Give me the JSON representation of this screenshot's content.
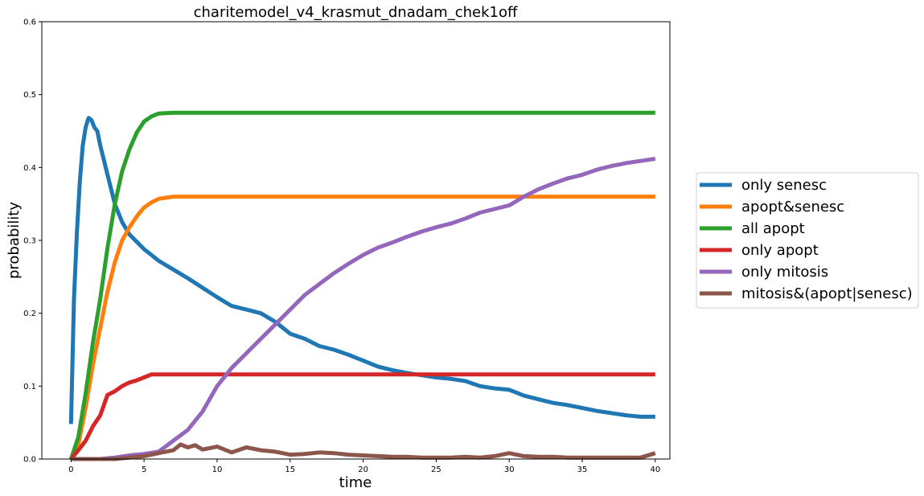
{
  "chart_data": {
    "type": "line",
    "title": "charitemodel_v4_krasmut_dnadam_chek1off",
    "xlabel": "time",
    "ylabel": "probability",
    "xlim": [
      -2,
      41
    ],
    "ylim": [
      0,
      0.6
    ],
    "xticks": [
      0,
      5,
      10,
      15,
      20,
      25,
      30,
      35,
      40
    ],
    "yticks": [
      0.0,
      0.1,
      0.2,
      0.3,
      0.4,
      0.5,
      0.6
    ],
    "xtick_labels": [
      "0",
      "5",
      "10",
      "15",
      "20",
      "25",
      "30",
      "35",
      "40"
    ],
    "ytick_labels": [
      "0.0",
      "0.1",
      "0.2",
      "0.3",
      "0.4",
      "0.5",
      "0.6"
    ],
    "grid": false,
    "legend_position": "outside-right",
    "series": [
      {
        "name": "only senesc",
        "color": "#1f77b4",
        "x": [
          0,
          0.2,
          0.4,
          0.6,
          0.8,
          1.0,
          1.2,
          1.4,
          1.6,
          1.8,
          2.0,
          2.5,
          3.0,
          3.5,
          4.0,
          4.5,
          5.0,
          5.5,
          6.0,
          7.0,
          8.0,
          9.0,
          10.0,
          11.0,
          12.0,
          13.0,
          14.0,
          15.0,
          16.0,
          17.0,
          18.0,
          19.0,
          20.0,
          21.0,
          22.0,
          23.0,
          24.0,
          25.0,
          26.0,
          27.0,
          28.0,
          29.0,
          30.0,
          31.0,
          32.0,
          33.0,
          34.0,
          35.0,
          36.0,
          37.0,
          38.0,
          39.0,
          40.0
        ],
        "y": [
          0.048,
          0.22,
          0.31,
          0.38,
          0.43,
          0.455,
          0.468,
          0.465,
          0.455,
          0.45,
          0.43,
          0.39,
          0.35,
          0.325,
          0.308,
          0.298,
          0.288,
          0.28,
          0.272,
          0.26,
          0.248,
          0.235,
          0.222,
          0.21,
          0.205,
          0.2,
          0.188,
          0.172,
          0.165,
          0.155,
          0.15,
          0.143,
          0.135,
          0.127,
          0.122,
          0.118,
          0.115,
          0.112,
          0.11,
          0.107,
          0.1,
          0.097,
          0.095,
          0.087,
          0.082,
          0.077,
          0.074,
          0.07,
          0.066,
          0.063,
          0.06,
          0.058,
          0.058
        ]
      },
      {
        "name": "apopt&senesc",
        "color": "#ff7f0e",
        "x": [
          0,
          0.5,
          1.0,
          1.5,
          2.0,
          2.5,
          3.0,
          3.5,
          4.0,
          4.5,
          5.0,
          5.5,
          6.0,
          7.0,
          10.0,
          20.0,
          30.0,
          40.0
        ],
        "y": [
          0,
          0.02,
          0.07,
          0.13,
          0.18,
          0.23,
          0.27,
          0.3,
          0.318,
          0.333,
          0.345,
          0.352,
          0.357,
          0.36,
          0.36,
          0.36,
          0.36,
          0.36
        ]
      },
      {
        "name": "all apopt",
        "color": "#2ca02c",
        "x": [
          0,
          0.5,
          1.0,
          1.5,
          2.0,
          2.5,
          3.0,
          3.5,
          4.0,
          4.5,
          5.0,
          5.5,
          6.0,
          7.0,
          10.0,
          20.0,
          30.0,
          40.0
        ],
        "y": [
          0,
          0.03,
          0.09,
          0.16,
          0.22,
          0.29,
          0.35,
          0.395,
          0.425,
          0.448,
          0.463,
          0.47,
          0.474,
          0.475,
          0.475,
          0.475,
          0.475,
          0.475
        ]
      },
      {
        "name": "only apopt",
        "color": "#d62728",
        "x": [
          0,
          0.5,
          1.0,
          1.5,
          2.0,
          2.5,
          3.0,
          3.5,
          4.0,
          4.5,
          5.0,
          5.5,
          6.0,
          10.0,
          20.0,
          30.0,
          40.0
        ],
        "y": [
          0,
          0.012,
          0.025,
          0.045,
          0.06,
          0.088,
          0.093,
          0.1,
          0.105,
          0.108,
          0.112,
          0.116,
          0.116,
          0.116,
          0.116,
          0.116,
          0.116
        ]
      },
      {
        "name": "only mitosis",
        "color": "#9467bd",
        "x": [
          0,
          2,
          3,
          4,
          5,
          6,
          7,
          8,
          9,
          10,
          11,
          12,
          13,
          14,
          15,
          16,
          17,
          18,
          19,
          20,
          21,
          22,
          23,
          24,
          25,
          26,
          27,
          28,
          29,
          30,
          31,
          32,
          33,
          34,
          35,
          36,
          37,
          38,
          39,
          40
        ],
        "y": [
          0,
          0,
          0.002,
          0.005,
          0.007,
          0.01,
          0.025,
          0.04,
          0.065,
          0.1,
          0.125,
          0.145,
          0.165,
          0.185,
          0.205,
          0.225,
          0.24,
          0.255,
          0.268,
          0.28,
          0.29,
          0.297,
          0.305,
          0.312,
          0.318,
          0.323,
          0.33,
          0.338,
          0.343,
          0.348,
          0.36,
          0.37,
          0.378,
          0.385,
          0.39,
          0.397,
          0.402,
          0.406,
          0.409,
          0.412
        ]
      },
      {
        "name": "mitosis&(apopt|senesc)",
        "color": "#8c564b",
        "x": [
          0,
          3,
          5,
          6,
          7,
          7.5,
          8,
          8.5,
          9,
          10,
          11,
          12,
          13,
          14,
          15,
          16,
          17,
          18,
          19,
          20,
          21,
          22,
          23,
          24,
          25,
          26,
          27,
          28,
          29,
          30,
          31,
          32,
          33,
          34,
          35,
          36,
          37,
          38,
          39,
          40
        ],
        "y": [
          0,
          0,
          0.004,
          0.008,
          0.012,
          0.02,
          0.016,
          0.019,
          0.013,
          0.017,
          0.009,
          0.016,
          0.012,
          0.01,
          0.006,
          0.007,
          0.009,
          0.008,
          0.006,
          0.005,
          0.004,
          0.003,
          0.003,
          0.002,
          0.002,
          0.002,
          0.003,
          0.002,
          0.004,
          0.008,
          0.004,
          0.003,
          0.003,
          0.002,
          0.002,
          0.002,
          0.002,
          0.002,
          0.002,
          0.008
        ]
      }
    ]
  }
}
